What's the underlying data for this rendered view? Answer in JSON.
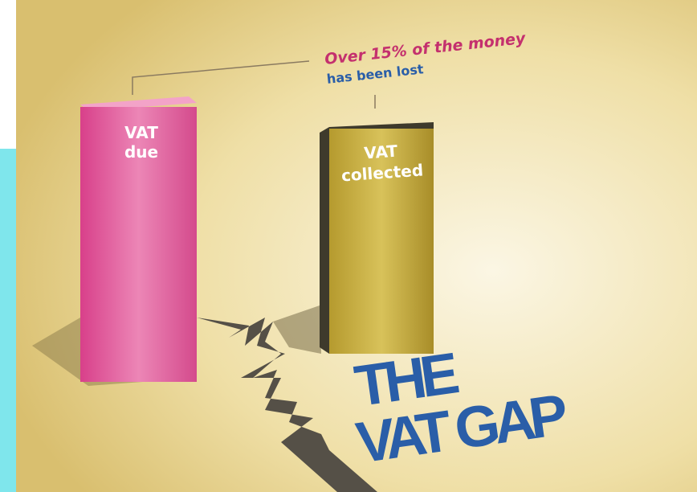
{
  "annotation": {
    "line1": "Over 15%  of the money",
    "line2": "has been lost"
  },
  "bars": [
    {
      "label": [
        "VAT",
        "due"
      ]
    },
    {
      "label": [
        "VAT",
        "collected"
      ]
    }
  ],
  "title": [
    "THE",
    "VAT GAP"
  ]
}
